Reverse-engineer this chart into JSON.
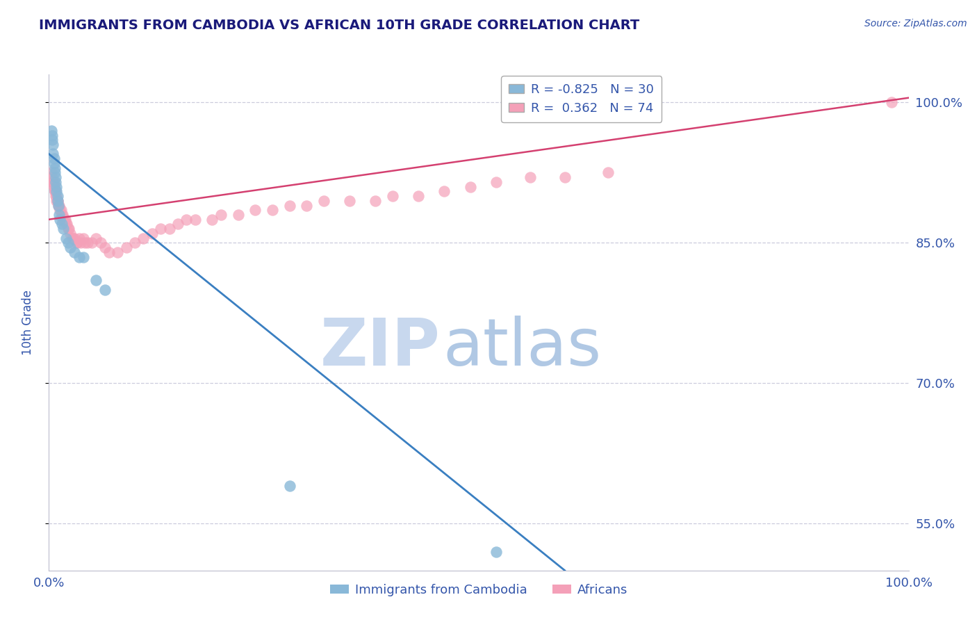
{
  "title": "IMMIGRANTS FROM CAMBODIA VS AFRICAN 10TH GRADE CORRELATION CHART",
  "source": "Source: ZipAtlas.com",
  "ylabel": "10th Grade",
  "legend_r_cambodia": "-0.825",
  "legend_n_cambodia": "30",
  "legend_r_african": "0.362",
  "legend_n_african": "74",
  "xlim": [
    0.0,
    1.0
  ],
  "ylim": [
    0.5,
    1.03
  ],
  "yticks": [
    0.55,
    0.7,
    0.85,
    1.0
  ],
  "ytick_labels": [
    "55.0%",
    "70.0%",
    "85.0%",
    "100.0%"
  ],
  "xtick_labels": [
    "0.0%",
    "100.0%"
  ],
  "xticks": [
    0.0,
    1.0
  ],
  "cambodia_color": "#89b8d8",
  "african_color": "#f4a0b8",
  "cambodia_line_color": "#3a7fc1",
  "african_line_color": "#d44070",
  "background_color": "#ffffff",
  "grid_color": "#ccccdd",
  "title_color": "#1a1a7a",
  "axis_label_color": "#3355aa",
  "tick_label_color": "#3355aa",
  "watermark_zip_color": "#c8d8ee",
  "watermark_atlas_color": "#b0c8e4",
  "cam_line_x0": 0.0,
  "cam_line_y0": 0.945,
  "cam_line_x1": 0.6,
  "cam_line_y1": 0.5,
  "afr_line_x0": 0.0,
  "afr_line_y0": 0.875,
  "afr_line_x1": 1.0,
  "afr_line_y1": 1.005,
  "cambodia_x": [
    0.003,
    0.004,
    0.004,
    0.005,
    0.005,
    0.006,
    0.006,
    0.007,
    0.007,
    0.008,
    0.008,
    0.009,
    0.009,
    0.01,
    0.01,
    0.011,
    0.012,
    0.013,
    0.015,
    0.017,
    0.02,
    0.022,
    0.025,
    0.03,
    0.035,
    0.04,
    0.055,
    0.065,
    0.28,
    0.52
  ],
  "cambodia_y": [
    0.97,
    0.965,
    0.96,
    0.955,
    0.945,
    0.94,
    0.935,
    0.93,
    0.925,
    0.92,
    0.915,
    0.91,
    0.905,
    0.9,
    0.895,
    0.89,
    0.88,
    0.875,
    0.87,
    0.865,
    0.855,
    0.85,
    0.845,
    0.84,
    0.835,
    0.835,
    0.81,
    0.8,
    0.59,
    0.52
  ],
  "african_x": [
    0.003,
    0.004,
    0.005,
    0.005,
    0.006,
    0.006,
    0.006,
    0.007,
    0.007,
    0.008,
    0.008,
    0.008,
    0.009,
    0.009,
    0.01,
    0.01,
    0.011,
    0.012,
    0.013,
    0.014,
    0.015,
    0.016,
    0.017,
    0.018,
    0.019,
    0.02,
    0.021,
    0.022,
    0.023,
    0.025,
    0.027,
    0.028,
    0.03,
    0.032,
    0.033,
    0.035,
    0.037,
    0.04,
    0.042,
    0.045,
    0.05,
    0.055,
    0.06,
    0.065,
    0.07,
    0.08,
    0.09,
    0.1,
    0.11,
    0.12,
    0.13,
    0.14,
    0.15,
    0.16,
    0.17,
    0.19,
    0.2,
    0.22,
    0.24,
    0.26,
    0.28,
    0.3,
    0.32,
    0.35,
    0.38,
    0.4,
    0.43,
    0.46,
    0.49,
    0.52,
    0.56,
    0.6,
    0.65,
    0.98
  ],
  "african_y": [
    0.925,
    0.92,
    0.915,
    0.915,
    0.915,
    0.91,
    0.91,
    0.905,
    0.905,
    0.905,
    0.905,
    0.9,
    0.9,
    0.895,
    0.895,
    0.895,
    0.89,
    0.89,
    0.885,
    0.885,
    0.88,
    0.88,
    0.875,
    0.875,
    0.875,
    0.87,
    0.87,
    0.865,
    0.865,
    0.86,
    0.855,
    0.855,
    0.855,
    0.85,
    0.85,
    0.855,
    0.85,
    0.855,
    0.85,
    0.85,
    0.85,
    0.855,
    0.85,
    0.845,
    0.84,
    0.84,
    0.845,
    0.85,
    0.855,
    0.86,
    0.865,
    0.865,
    0.87,
    0.875,
    0.875,
    0.875,
    0.88,
    0.88,
    0.885,
    0.885,
    0.89,
    0.89,
    0.895,
    0.895,
    0.895,
    0.9,
    0.9,
    0.905,
    0.91,
    0.915,
    0.92,
    0.92,
    0.925,
    1.0
  ]
}
